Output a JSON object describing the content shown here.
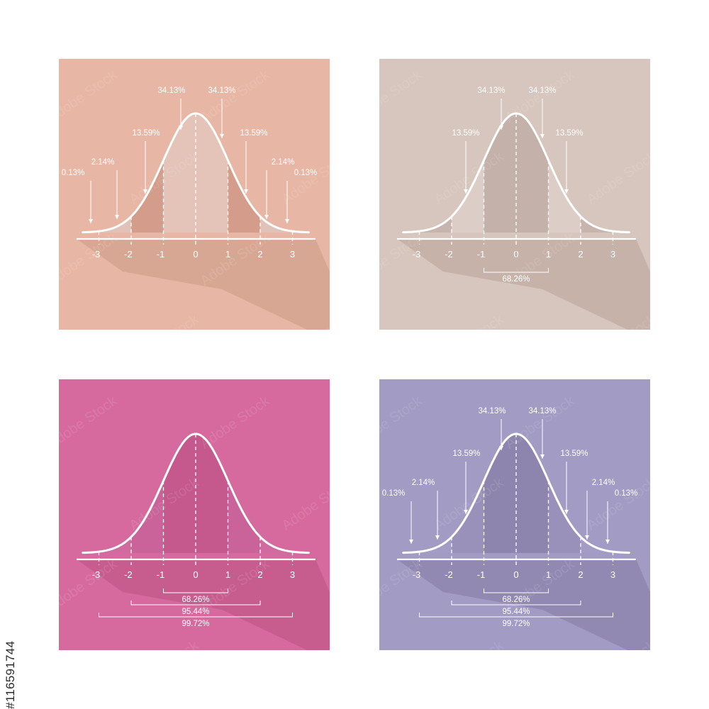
{
  "side_text": "#116591744",
  "watermark": "Adobe Stock",
  "colors": {
    "line": "#ffffff"
  },
  "panels": [
    {
      "id": "p1",
      "bg": "#E8B6A4",
      "shadow": "#D5A490",
      "bands": {
        "center": "#E4C3B8",
        "mid": "#D39C8B",
        "tail": "#E0C2B8"
      },
      "tick_labels": [
        "-3",
        "-2",
        "-1",
        "0",
        "1",
        "2",
        "3"
      ],
      "top_labels": [
        "0.13%",
        "2.14%",
        "13.59%",
        "34.13%",
        "34.13%",
        "13.59%",
        "2.14%",
        "0.13%"
      ],
      "brackets": []
    },
    {
      "id": "p2",
      "bg": "#D6C6BD",
      "shadow": "#C3AEA5",
      "bands": {
        "center": "#C4B1A9",
        "mid": "#DCCDC7",
        "tail": "#C7B4AC"
      },
      "tick_labels": [
        "-3",
        "-2",
        "-1",
        "0",
        "1",
        "2",
        "3"
      ],
      "top_labels": [
        "13.59%",
        "34.13%",
        "34.13%",
        "13.59%"
      ],
      "brackets": [
        "68.26%"
      ]
    },
    {
      "id": "p3",
      "bg": "#D66A9E",
      "shadow": "#C45A8C",
      "bands": {
        "center": "#C5598E",
        "mid": "#C9639A",
        "tail": "#D06BA0"
      },
      "tick_labels": [
        "-3",
        "-2",
        "-1",
        "0",
        "1",
        "2",
        "3"
      ],
      "top_labels": [],
      "brackets": [
        "68.26%",
        "95.44%",
        "99.72%"
      ]
    },
    {
      "id": "p4",
      "bg": "#A29BC4",
      "shadow": "#8E86AE",
      "bands": {
        "center": "#8E85AE",
        "mid": "#9A91BA",
        "tail": "#A39CC5"
      },
      "tick_labels": [
        "-3",
        "-2",
        "-1",
        "0",
        "1",
        "2",
        "3"
      ],
      "top_labels": [
        "0.13%",
        "2.14%",
        "13.59%",
        "34.13%",
        "34.13%",
        "13.59%",
        "2.14%",
        "0.13%"
      ],
      "brackets": [
        "68.26%",
        "95.44%",
        "99.72%"
      ]
    }
  ]
}
